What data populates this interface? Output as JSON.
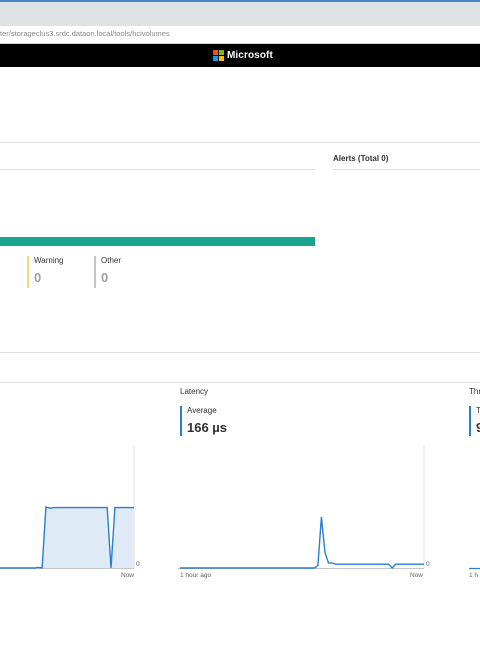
{
  "browser": {
    "url": "ter/storageclus3.srdc.dataon.local/tools/hcivolumes"
  },
  "brand": {
    "name": "Microsoft"
  },
  "alerts": {
    "title": "Alerts (Total 0)"
  },
  "health": {
    "bar_color": "#1aa58f",
    "warning": {
      "label": "Warning",
      "value": "0",
      "color": "#f8d77a"
    },
    "other": {
      "label": "Other",
      "value": "0",
      "color": "#c8c6c4"
    }
  },
  "performance": {
    "iops_panel": {
      "chart_data": {
        "type": "area",
        "series": [
          {
            "values": [
              0,
              0,
              0,
              0,
              0,
              0,
              0,
              0,
              0,
              0,
              1,
              0,
              100,
              98,
              99,
              99,
              99,
              99,
              99,
              99,
              99,
              99,
              99,
              99,
              99,
              99,
              99,
              99,
              99,
              0,
              99,
              99,
              99,
              99,
              99,
              99
            ]
          }
        ],
        "ymin_label": "0",
        "x_end_label": "Now"
      }
    },
    "latency_panel": {
      "title": "Latency",
      "metric_label": "Average",
      "metric_value": "166 µs",
      "chart_data": {
        "type": "line",
        "series": [
          {
            "values": [
              0,
              0,
              0,
              0,
              0,
              0,
              0,
              0,
              0,
              0,
              0,
              0,
              0,
              0,
              0,
              0,
              0,
              0,
              0,
              0,
              0,
              0,
              0,
              0,
              0,
              0,
              0,
              0,
              0,
              0,
              0,
              0,
              0,
              0,
              0,
              0,
              0,
              0,
              0,
              2,
              40,
              12,
              4,
              4,
              3,
              3,
              3,
              3,
              3,
              3,
              3,
              3,
              3,
              3,
              3,
              3,
              3,
              3,
              3,
              3,
              0,
              3,
              3,
              3,
              3,
              3,
              3,
              3,
              3,
              3
            ]
          }
        ],
        "ymin_label": "0",
        "x_start_label": "1 hour ago",
        "x_end_label": "Now"
      }
    },
    "throughput_panel": {
      "title": "Thr",
      "metric_label": "T",
      "metric_value": "9",
      "x_start_label": "1 h"
    }
  }
}
